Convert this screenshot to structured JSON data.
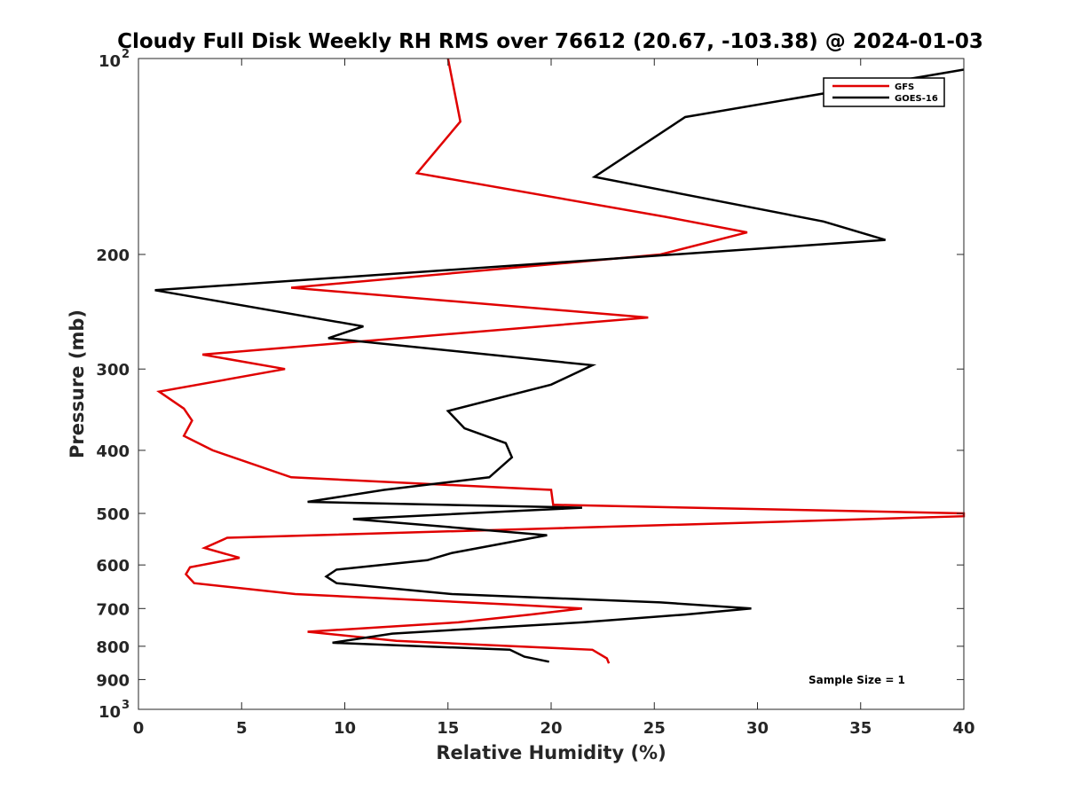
{
  "chart_data": {
    "type": "line",
    "title": "Cloudy Full Disk Weekly RH RMS over 76612 (20.67, -103.38) @ 2024-01-03",
    "xlabel": "Relative Humidity (%)",
    "ylabel": "Pressure (mb)",
    "xlim": [
      0,
      40
    ],
    "ylim": [
      100,
      1000
    ],
    "yscale": "log",
    "y_reversed": true,
    "grid": false,
    "x_ticks": [
      0,
      5,
      10,
      15,
      20,
      25,
      30,
      35,
      40
    ],
    "x_tick_labels": [
      "0",
      "5",
      "10",
      "15",
      "20",
      "25",
      "30",
      "35",
      "40"
    ],
    "y_ticks": [
      {
        "value": 100,
        "base": "10",
        "exp": "2"
      },
      {
        "value": 200,
        "label": "200"
      },
      {
        "value": 300,
        "label": "300"
      },
      {
        "value": 400,
        "label": "400"
      },
      {
        "value": 500,
        "label": "500"
      },
      {
        "value": 600,
        "label": "600"
      },
      {
        "value": 700,
        "label": "700"
      },
      {
        "value": 800,
        "label": "800"
      },
      {
        "value": 900,
        "label": "900"
      },
      {
        "value": 1000,
        "base": "10",
        "exp": "3"
      }
    ],
    "legend_position": "top-right",
    "series": [
      {
        "name": "GFS",
        "color": "#e00000",
        "points": [
          [
            15.0,
            100
          ],
          [
            15.6,
            125
          ],
          [
            13.5,
            150
          ],
          [
            25.5,
            175
          ],
          [
            29.5,
            185
          ],
          [
            25.3,
            200
          ],
          [
            7.4,
            225
          ],
          [
            24.7,
            250
          ],
          [
            3.1,
            285
          ],
          [
            7.1,
            300
          ],
          [
            1.0,
            325
          ],
          [
            2.2,
            345
          ],
          [
            2.6,
            360
          ],
          [
            2.2,
            380
          ],
          [
            3.6,
            400
          ],
          [
            7.4,
            440
          ],
          [
            20.0,
            460
          ],
          [
            20.1,
            485
          ],
          [
            40.0,
            500
          ],
          [
            40.0,
            505
          ],
          [
            31.0,
            515
          ],
          [
            4.3,
            545
          ],
          [
            3.2,
            565
          ],
          [
            4.9,
            585
          ],
          [
            2.5,
            605
          ],
          [
            2.3,
            620
          ],
          [
            2.7,
            640
          ],
          [
            7.6,
            665
          ],
          [
            18.0,
            690
          ],
          [
            21.5,
            700
          ],
          [
            19.0,
            715
          ],
          [
            15.5,
            735
          ],
          [
            8.2,
            760
          ],
          [
            12.5,
            785
          ],
          [
            22.0,
            810
          ],
          [
            22.7,
            835
          ],
          [
            22.8,
            850
          ]
        ]
      },
      {
        "name": "GOES-16",
        "color": "#000000",
        "points": [
          [
            40.0,
            104
          ],
          [
            26.5,
            123
          ],
          [
            22.1,
            152
          ],
          [
            33.2,
            178
          ],
          [
            36.2,
            190
          ],
          [
            0.8,
            227
          ],
          [
            10.9,
            258
          ],
          [
            9.2,
            269
          ],
          [
            22.0,
            296
          ],
          [
            20.0,
            317
          ],
          [
            15.0,
            348
          ],
          [
            15.8,
            370
          ],
          [
            17.8,
            390
          ],
          [
            18.1,
            410
          ],
          [
            17.0,
            440
          ],
          [
            11.9,
            460
          ],
          [
            8.2,
            480
          ],
          [
            21.5,
            490
          ],
          [
            10.4,
            510
          ],
          [
            19.8,
            540
          ],
          [
            15.2,
            575
          ],
          [
            14.0,
            590
          ],
          [
            9.6,
            610
          ],
          [
            9.1,
            625
          ],
          [
            9.6,
            640
          ],
          [
            15.2,
            665
          ],
          [
            25.3,
            685
          ],
          [
            29.7,
            700
          ],
          [
            26.5,
            715
          ],
          [
            21.5,
            735
          ],
          [
            12.3,
            765
          ],
          [
            9.4,
            790
          ],
          [
            18.0,
            810
          ],
          [
            18.7,
            830
          ],
          [
            19.9,
            845
          ]
        ]
      }
    ],
    "annotation": "Sample Size = 1"
  }
}
